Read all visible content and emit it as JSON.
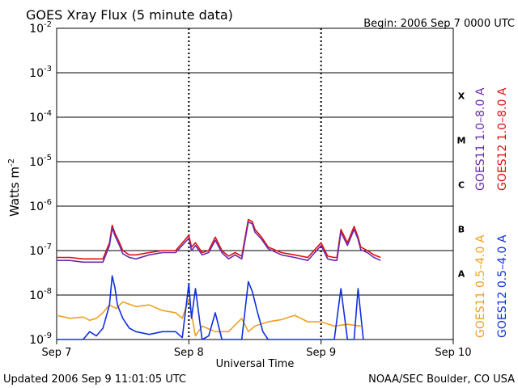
{
  "chart_data": {
    "type": "line",
    "title": "GOES Xray Flux (5 minute data)",
    "begin_label": "Begin:  2006 Sep 7 0000 UTC",
    "ylabel_main": "Watts m",
    "ylabel_exp": "-2",
    "xlabel": "Universal Time",
    "x_ticks": [
      "Sep 7",
      "Sep 8",
      "Sep 9",
      "Sep 10"
    ],
    "x_range_days": [
      0,
      3
    ],
    "y_scale": "log",
    "y_exponents": [
      -2,
      -3,
      -4,
      -5,
      -6,
      -7,
      -8,
      -9
    ],
    "y_range": [
      1e-09,
      0.01
    ],
    "flare_classes": [
      "X",
      "M",
      "C",
      "B",
      "A"
    ],
    "legend_right": [
      {
        "label": "GOES11 1.0–8.0 A",
        "color": "#6a2bb0"
      },
      {
        "label": "GOES12 1.0–8.0 A",
        "color": "#e01010"
      },
      {
        "label": "GOES11 0.5–4.0 A",
        "color": "#f0a020"
      },
      {
        "label": "GOES12 0.5–4.0 A",
        "color": "#1030e0"
      }
    ],
    "series": [
      {
        "name": "GOES12 1.0-8.0 A",
        "color": "#e01010",
        "x": [
          0.0,
          0.1,
          0.2,
          0.3,
          0.35,
          0.4,
          0.42,
          0.44,
          0.48,
          0.5,
          0.55,
          0.6,
          0.7,
          0.8,
          0.9,
          1.0,
          1.02,
          1.05,
          1.1,
          1.15,
          1.2,
          1.25,
          1.3,
          1.35,
          1.4,
          1.45,
          1.48,
          1.5,
          1.55,
          1.6,
          1.7,
          1.8,
          1.9,
          2.0,
          2.05,
          2.1,
          2.12,
          2.15,
          2.2,
          2.25,
          2.28,
          2.3,
          2.35,
          2.4,
          2.45
        ],
        "y": [
          7e-08,
          7e-08,
          6.5e-08,
          6.5e-08,
          6.5e-08,
          1.5e-07,
          3.7e-07,
          2.5e-07,
          1.4e-07,
          1e-07,
          8e-08,
          8e-08,
          9e-08,
          1e-07,
          1e-07,
          2.2e-07,
          1.2e-07,
          1.5e-07,
          9e-08,
          1e-07,
          2e-07,
          1e-07,
          7.5e-08,
          9e-08,
          7.5e-08,
          5e-07,
          4.5e-07,
          3e-07,
          2e-07,
          1.2e-07,
          9e-08,
          8e-08,
          7e-08,
          1.5e-07,
          7.5e-08,
          7e-08,
          7e-08,
          3e-07,
          1.5e-07,
          3.5e-07,
          2e-07,
          1.2e-07,
          1e-07,
          8e-08,
          7e-08
        ]
      },
      {
        "name": "GOES11 1.0-8.0 A",
        "color": "#6a2bb0",
        "x": [
          0.0,
          0.1,
          0.2,
          0.3,
          0.35,
          0.4,
          0.42,
          0.44,
          0.48,
          0.5,
          0.55,
          0.6,
          0.7,
          0.8,
          0.9,
          1.0,
          1.02,
          1.05,
          1.1,
          1.15,
          1.2,
          1.25,
          1.3,
          1.35,
          1.4,
          1.45,
          1.48,
          1.5,
          1.55,
          1.6,
          1.7,
          1.8,
          1.9,
          2.0,
          2.05,
          2.1,
          2.12,
          2.15,
          2.2,
          2.25,
          2.28,
          2.3,
          2.35,
          2.4,
          2.45
        ],
        "y": [
          6e-08,
          6e-08,
          5.5e-08,
          5.5e-08,
          5.5e-08,
          1.3e-07,
          3.2e-07,
          2.2e-07,
          1.2e-07,
          8.5e-08,
          7e-08,
          6.5e-08,
          8e-08,
          9e-08,
          9e-08,
          1.9e-07,
          1e-07,
          1.3e-07,
          8e-08,
          9e-08,
          1.7e-07,
          9e-08,
          6.5e-08,
          8e-08,
          6.5e-08,
          4.4e-07,
          4e-07,
          2.6e-07,
          1.8e-07,
          1.1e-07,
          8e-08,
          7e-08,
          6e-08,
          1.3e-07,
          6.5e-08,
          6e-08,
          6e-08,
          2.6e-07,
          1.3e-07,
          3e-07,
          1.8e-07,
          1.05e-07,
          9e-08,
          7e-08,
          6e-08
        ]
      },
      {
        "name": "GOES11 0.5-4.0 A",
        "color": "#f0a020",
        "x": [
          0.0,
          0.1,
          0.2,
          0.25,
          0.3,
          0.35,
          0.4,
          0.45,
          0.5,
          0.6,
          0.7,
          0.8,
          0.9,
          0.95,
          1.0,
          1.05,
          1.1,
          1.2,
          1.3,
          1.4,
          1.45,
          1.5,
          1.6,
          1.7,
          1.8,
          1.9,
          2.0,
          2.1,
          2.2,
          2.3
        ],
        "y": [
          3.5e-09,
          3e-09,
          3.2e-09,
          2.7e-09,
          3e-09,
          4e-09,
          6e-09,
          5e-09,
          7e-09,
          5.5e-09,
          6e-09,
          4.5e-09,
          4e-09,
          3e-09,
          8e-09,
          1.2e-09,
          2e-09,
          1.5e-09,
          1.5e-09,
          3e-09,
          1.5e-09,
          2e-09,
          2.5e-09,
          2.8e-09,
          3.5e-09,
          2.5e-09,
          2.5e-09,
          2e-09,
          2.2e-09,
          2e-09
        ]
      },
      {
        "name": "GOES12 0.5-4.0 A",
        "color": "#1030e0",
        "x": [
          0.0,
          0.1,
          0.2,
          0.25,
          0.3,
          0.35,
          0.4,
          0.42,
          0.44,
          0.46,
          0.5,
          0.55,
          0.6,
          0.7,
          0.8,
          0.9,
          0.95,
          1.0,
          1.02,
          1.05,
          1.1,
          1.15,
          1.2,
          1.25,
          1.3,
          1.35,
          1.4,
          1.45,
          1.48,
          1.52,
          1.56,
          1.6,
          1.7,
          1.8,
          1.9,
          2.0,
          2.05,
          2.1,
          2.15,
          2.2,
          2.25,
          2.28,
          2.32
        ],
        "y": [
          1e-09,
          1e-09,
          1e-09,
          1.5e-09,
          1.2e-09,
          1.8e-09,
          6e-09,
          2.7e-08,
          1.5e-08,
          6e-09,
          3e-09,
          1.8e-09,
          1.5e-09,
          1.3e-09,
          1.5e-09,
          1.5e-09,
          1.1e-09,
          1.8e-08,
          3e-09,
          1.4e-08,
          1e-09,
          1.2e-09,
          4e-09,
          1e-09,
          1e-09,
          1e-09,
          1e-09,
          2e-08,
          1.2e-08,
          4e-09,
          1.5e-09,
          1e-09,
          1e-09,
          1e-09,
          1e-09,
          1e-09,
          1e-09,
          1e-09,
          1.4e-08,
          1e-09,
          1e-09,
          1.4e-08,
          1e-09
        ]
      }
    ]
  },
  "footer": {
    "updated": "Updated 2006 Sep  9 11:01:05 UTC",
    "source": "NOAA/SEC Boulder, CO USA"
  }
}
